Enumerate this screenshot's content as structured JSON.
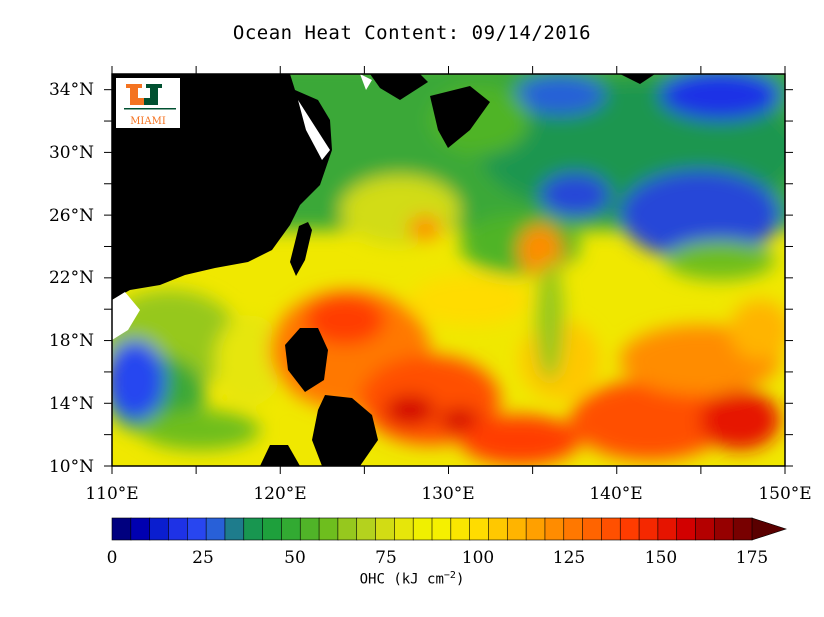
{
  "title": "Ocean Heat Content: 09/14/2016",
  "logo": {
    "text": "MIAMI",
    "colors": {
      "orange": "#F47321",
      "green": "#005030"
    }
  },
  "map": {
    "lon_range": [
      110,
      150
    ],
    "lat_range": [
      10,
      35
    ],
    "lat_ticks": [
      "10°N",
      "14°N",
      "18°N",
      "22°N",
      "26°N",
      "30°N",
      "34°N"
    ],
    "lon_ticks": [
      "110°E",
      "120°E",
      "130°E",
      "140°E",
      "150°E"
    ],
    "land_color": "#000000"
  },
  "colorbar": {
    "label": "OHC (kJ cm",
    "label_exp": "−2",
    "label_end": ")",
    "tick_labels": [
      "0",
      "25",
      "50",
      "75",
      "100",
      "125",
      "150",
      "175"
    ],
    "colors": [
      "#00007f",
      "#0000b0",
      "#0a1ecf",
      "#1e32e6",
      "#2846f0",
      "#2860d8",
      "#1e7c8c",
      "#189650",
      "#1ea03c",
      "#32aa32",
      "#50b428",
      "#6ebe1e",
      "#96c81e",
      "#b4d21e",
      "#d2dc14",
      "#e6e60a",
      "#f0f000",
      "#f5f000",
      "#fae600",
      "#ffdc00",
      "#ffc800",
      "#ffb400",
      "#ffa000",
      "#ff8c00",
      "#ff7800",
      "#ff6400",
      "#ff5000",
      "#ff3c00",
      "#f52800",
      "#e61400",
      "#d20000",
      "#b40000",
      "#960000",
      "#780000"
    ],
    "arrow_color": "#5a0000"
  }
}
